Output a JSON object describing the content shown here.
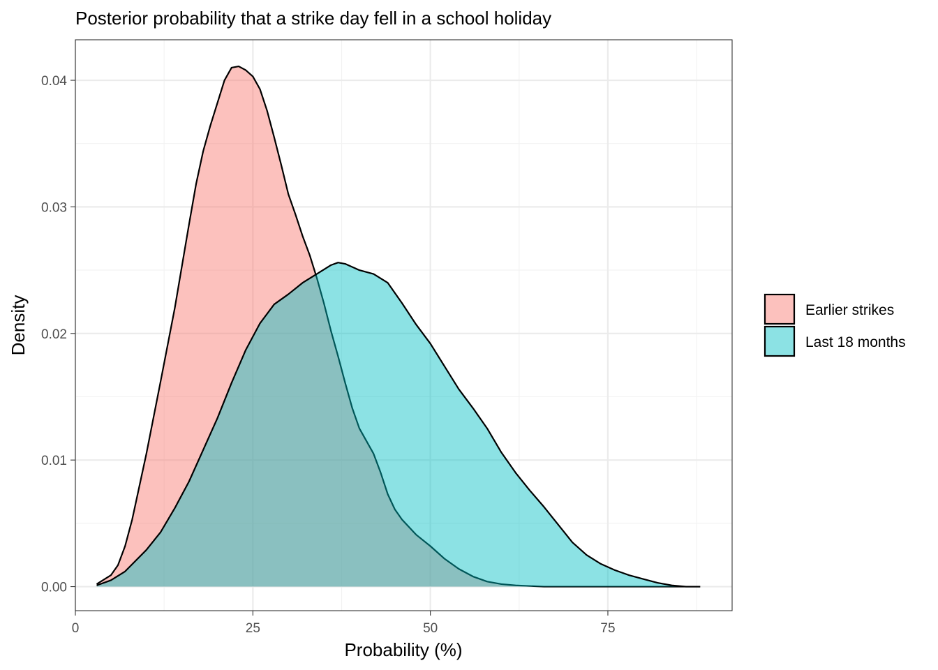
{
  "chart_data": {
    "type": "area",
    "title": "Posterior probability that a strike day fell in a school holiday",
    "xlabel": "Probability (%)",
    "ylabel": "Density",
    "xlim": [
      0,
      92.5
    ],
    "ylim": [
      -0.0019,
      0.0432
    ],
    "x_ticks": [
      0,
      25,
      50,
      75
    ],
    "x_tick_labels": [
      "0",
      "25",
      "50",
      "75"
    ],
    "y_ticks": [
      0,
      0.01,
      0.02,
      0.03,
      0.04
    ],
    "y_tick_labels": [
      "0.00",
      "0.01",
      "0.02",
      "0.03",
      "0.04"
    ],
    "grid": true,
    "legend_position": "right",
    "series": [
      {
        "name": "Earlier strikes",
        "color": "#F8766D",
        "points": [
          [
            3,
            0.0002
          ],
          [
            5,
            0.0009
          ],
          [
            6,
            0.0017
          ],
          [
            7,
            0.0032
          ],
          [
            8,
            0.0053
          ],
          [
            10,
            0.0105
          ],
          [
            12,
            0.0162
          ],
          [
            14,
            0.022
          ],
          [
            16,
            0.0286
          ],
          [
            17,
            0.0318
          ],
          [
            18,
            0.0344
          ],
          [
            19,
            0.0364
          ],
          [
            20,
            0.0382
          ],
          [
            21,
            0.04
          ],
          [
            22,
            0.041
          ],
          [
            23,
            0.0411
          ],
          [
            24,
            0.0408
          ],
          [
            25,
            0.0403
          ],
          [
            26,
            0.0393
          ],
          [
            27,
            0.0376
          ],
          [
            28,
            0.0355
          ],
          [
            29,
            0.0333
          ],
          [
            30,
            0.031
          ],
          [
            31,
            0.0294
          ],
          [
            32,
            0.0277
          ],
          [
            33,
            0.0262
          ],
          [
            34,
            0.0244
          ],
          [
            35,
            0.0224
          ],
          [
            36,
            0.0202
          ],
          [
            37,
            0.0182
          ],
          [
            38,
            0.0161
          ],
          [
            39,
            0.0141
          ],
          [
            40,
            0.0125
          ],
          [
            41,
            0.0115
          ],
          [
            42,
            0.0105
          ],
          [
            43,
            0.009
          ],
          [
            44,
            0.0073
          ],
          [
            45,
            0.0061
          ],
          [
            46,
            0.0053
          ],
          [
            48,
            0.0041
          ],
          [
            50,
            0.0032
          ],
          [
            52,
            0.0022
          ],
          [
            54,
            0.0014
          ],
          [
            56,
            0.0008
          ],
          [
            58,
            0.0004
          ],
          [
            60,
            0.0002
          ],
          [
            62,
            0.0001
          ],
          [
            66,
            0.0
          ],
          [
            88,
            0.0
          ]
        ]
      },
      {
        "name": "Last 18 months",
        "color": "#00BFC4",
        "points": [
          [
            3,
            0.0001
          ],
          [
            5,
            0.0005
          ],
          [
            7,
            0.0012
          ],
          [
            10,
            0.0029
          ],
          [
            12,
            0.0043
          ],
          [
            14,
            0.0062
          ],
          [
            16,
            0.0083
          ],
          [
            18,
            0.0108
          ],
          [
            20,
            0.0133
          ],
          [
            22,
            0.0161
          ],
          [
            24,
            0.0187
          ],
          [
            26,
            0.0208
          ],
          [
            28,
            0.0223
          ],
          [
            30,
            0.0231
          ],
          [
            32,
            0.024
          ],
          [
            34,
            0.0247
          ],
          [
            36,
            0.0254
          ],
          [
            37,
            0.0256
          ],
          [
            38,
            0.0255
          ],
          [
            40,
            0.025
          ],
          [
            42,
            0.0247
          ],
          [
            44,
            0.024
          ],
          [
            46,
            0.0224
          ],
          [
            48,
            0.0207
          ],
          [
            50,
            0.0192
          ],
          [
            52,
            0.0174
          ],
          [
            54,
            0.0156
          ],
          [
            56,
            0.0141
          ],
          [
            58,
            0.0125
          ],
          [
            60,
            0.0106
          ],
          [
            62,
            0.009
          ],
          [
            64,
            0.0076
          ],
          [
            66,
            0.0063
          ],
          [
            68,
            0.0049
          ],
          [
            70,
            0.0035
          ],
          [
            72,
            0.0025
          ],
          [
            74,
            0.0018
          ],
          [
            76,
            0.0013
          ],
          [
            78,
            0.0009
          ],
          [
            80,
            0.0006
          ],
          [
            82,
            0.0003
          ],
          [
            84,
            0.0001
          ],
          [
            86,
            0.0
          ],
          [
            88,
            0.0
          ]
        ]
      }
    ]
  }
}
